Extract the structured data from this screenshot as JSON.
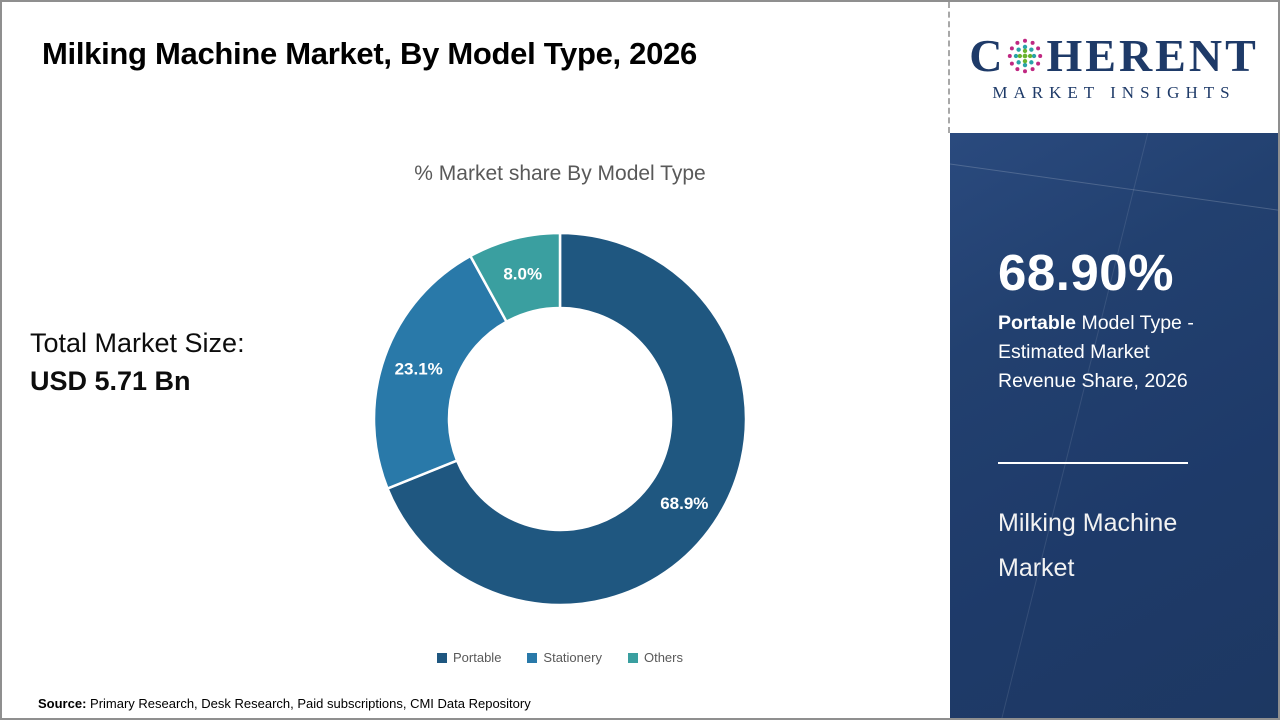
{
  "header": {
    "title": "Milking Machine Market, By Model Type, 2026"
  },
  "logo": {
    "part1": "C",
    "part2": "HERENT",
    "tagline": "MARKET INSIGHTS",
    "navy": "#1E3A68",
    "globe_colors": {
      "outer": "#C02882",
      "middle": "#2BA3A9",
      "inner": "#69B42E"
    }
  },
  "left_panel": {
    "total_label": "Total Market Size:",
    "total_value": "USD 5.71 Bn"
  },
  "chart_data": {
    "type": "pie",
    "variant": "donut",
    "title": "% Market share By Model Type",
    "categories": [
      "Portable",
      "Stationery",
      "Others"
    ],
    "values": [
      68.9,
      23.1,
      8.0
    ],
    "labels": [
      "68.9%",
      "23.1%",
      "8.0%"
    ],
    "colors": [
      "#1F5780",
      "#2979A9",
      "#3A9FA0"
    ],
    "start_angle_deg": 0,
    "legend_position": "bottom",
    "slice_label_color": "#ffffff"
  },
  "sidebar": {
    "highlight_value": "68.90%",
    "desc_bold": "Portable",
    "desc_rest": " Model Type - Estimated Market Revenue Share, 2026",
    "market_name": "Milking Machine Market",
    "background": "#1E3A69"
  },
  "footer": {
    "source_label": "Source:",
    "source_text": " Primary Research, Desk Research, Paid subscriptions, CMI Data Repository"
  }
}
